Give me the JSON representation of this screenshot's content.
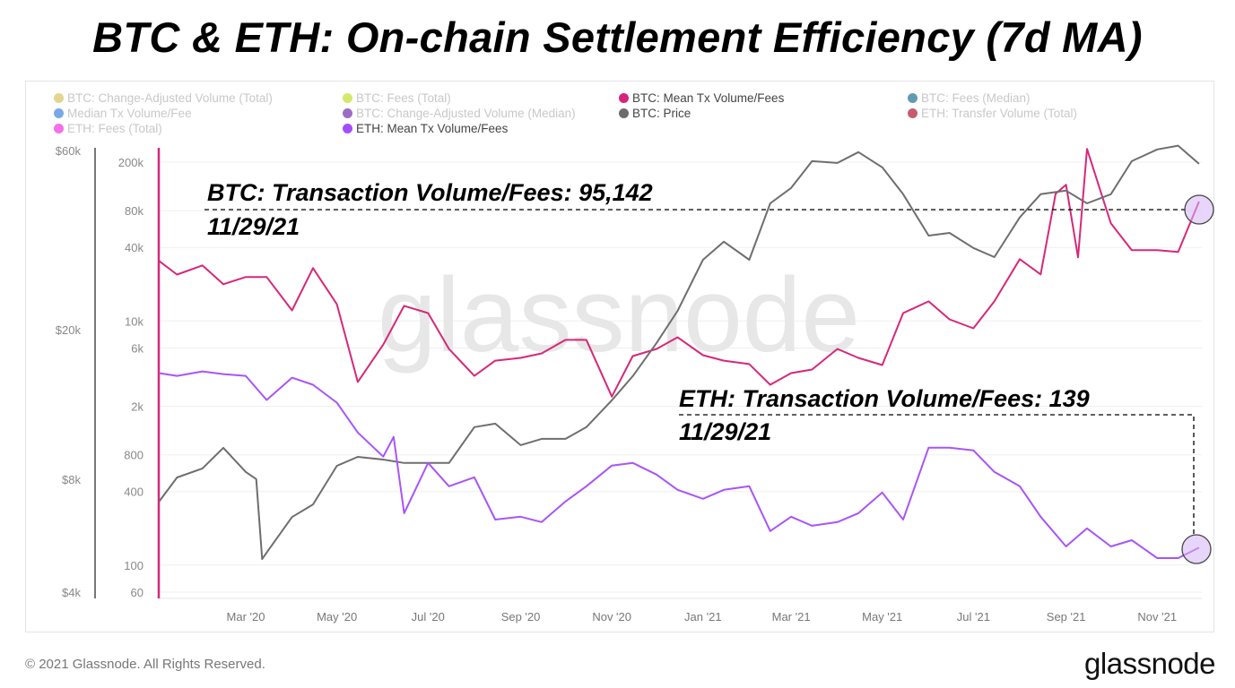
{
  "title": "BTC & ETH: On-chain Settlement Efficiency (7d MA)",
  "watermark": "glassnode",
  "footer": {
    "copyright": "© 2021 Glassnode. All Rights Reserved.",
    "logo": "glassnode"
  },
  "legend": [
    {
      "label": "BTC: Change-Adjusted Volume (Total)",
      "color": "#d9c86a",
      "active": false
    },
    {
      "label": "BTC: Fees (Total)",
      "color": "#c5e03c",
      "active": false
    },
    {
      "label": "BTC: Mean Tx Volume/Fees",
      "color": "#d6247a",
      "active": true
    },
    {
      "label": "BTC: Fees (Median)",
      "color": "#2c7a98",
      "active": false
    },
    {
      "label": "Median Tx Volume/Fee",
      "color": "#4a8be0",
      "active": false
    },
    {
      "label": "BTC: Change-Adjusted Volume (Median)",
      "color": "#7b3bb2",
      "active": false
    },
    {
      "label": "BTC: Price",
      "color": "#6b6b6b",
      "active": true
    },
    {
      "label": "ETH: Transfer Volume (Total)",
      "color": "#b3263f",
      "active": false
    },
    {
      "label": "ETH: Fees (Total)",
      "color": "#f23fe2",
      "active": false
    },
    {
      "label": "ETH: Mean Tx Volume/Fees",
      "color": "#a44dff",
      "active": true
    }
  ],
  "annotations": {
    "btc": {
      "label": "BTC: Transaction Volume/Fees: 95,142",
      "date": "11/29/21"
    },
    "eth": {
      "label": "ETH: Transaction Volume/Fees: 139",
      "date": "11/29/21"
    }
  },
  "chart_data": {
    "type": "line",
    "x_ticks": [
      "Mar '20",
      "May '20",
      "Jul '20",
      "Sep '20",
      "Nov '20",
      "Jan '21",
      "Mar '21",
      "May '21",
      "Jul '21",
      "Sep '21",
      "Nov '21"
    ],
    "x_tick_dates": [
      "2020-03-01",
      "2020-05-01",
      "2020-07-01",
      "2020-09-01",
      "2020-11-01",
      "2021-01-01",
      "2021-03-01",
      "2021-05-01",
      "2021-07-01",
      "2021-09-01",
      "2021-11-01"
    ],
    "xlim": [
      "2020-01-03",
      "2021-11-29"
    ],
    "y_price": {
      "scale": "log",
      "ticks": [
        "$60k",
        "$20k",
        "$8k",
        "$4k"
      ],
      "tick_values": [
        60000,
        20000,
        8000,
        4000
      ],
      "ylim": [
        4000,
        60000
      ]
    },
    "y_ratio": {
      "scale": "log",
      "ticks": [
        "200k",
        "80k",
        "40k",
        "10k",
        "6k",
        "2k",
        "800",
        "400",
        "100",
        "60"
      ],
      "tick_values": [
        200000,
        80000,
        40000,
        10000,
        6000,
        2000,
        800,
        400,
        100,
        60
      ],
      "ylim": [
        60,
        200000
      ]
    },
    "grid": true,
    "legend": "top",
    "series": [
      {
        "name": "BTC: Mean Tx Volume/Fees",
        "axis": "ratio",
        "color": "#d6287a",
        "points": [
          [
            "2020-01-03",
            31000
          ],
          [
            "2020-01-15",
            24000
          ],
          [
            "2020-02-01",
            28500
          ],
          [
            "2020-02-15",
            20000
          ],
          [
            "2020-03-01",
            22900
          ],
          [
            "2020-03-15",
            22900
          ],
          [
            "2020-04-01",
            12200
          ],
          [
            "2020-04-15",
            27100
          ],
          [
            "2020-05-01",
            13700
          ],
          [
            "2020-05-15",
            3160
          ],
          [
            "2020-06-01",
            6400
          ],
          [
            "2020-06-15",
            13300
          ],
          [
            "2020-07-01",
            11600
          ],
          [
            "2020-07-15",
            5900
          ],
          [
            "2020-08-01",
            3550
          ],
          [
            "2020-08-15",
            4730
          ],
          [
            "2020-09-01",
            4980
          ],
          [
            "2020-09-15",
            5420
          ],
          [
            "2020-10-01",
            7000
          ],
          [
            "2020-10-15",
            7000
          ],
          [
            "2020-11-01",
            2400
          ],
          [
            "2020-11-15",
            5150
          ],
          [
            "2020-12-01",
            5900
          ],
          [
            "2020-12-15",
            7350
          ],
          [
            "2021-01-01",
            5240
          ],
          [
            "2021-01-15",
            4730
          ],
          [
            "2021-02-01",
            4430
          ],
          [
            "2021-02-15",
            3000
          ],
          [
            "2021-03-01",
            3740
          ],
          [
            "2021-03-15",
            4000
          ],
          [
            "2021-04-01",
            5900
          ],
          [
            "2021-04-15",
            4980
          ],
          [
            "2021-05-01",
            4350
          ],
          [
            "2021-05-15",
            11600
          ],
          [
            "2021-06-01",
            14460
          ],
          [
            "2021-06-15",
            10310
          ],
          [
            "2021-07-01",
            8700
          ],
          [
            "2021-07-15",
            14460
          ],
          [
            "2021-08-01",
            32080
          ],
          [
            "2021-08-15",
            24060
          ],
          [
            "2021-08-25",
            110400
          ],
          [
            "2021-09-01",
            130700
          ],
          [
            "2021-09-09",
            33200
          ],
          [
            "2021-09-15",
            257000
          ],
          [
            "2021-10-01",
            63100
          ],
          [
            "2021-10-15",
            37960
          ],
          [
            "2021-11-01",
            37960
          ],
          [
            "2021-11-15",
            36700
          ],
          [
            "2021-11-29",
            95142
          ]
        ]
      },
      {
        "name": "BTC: Price",
        "axis": "price",
        "color": "#6e6e6e",
        "points": [
          [
            "2020-01-03",
            6970
          ],
          [
            "2020-01-15",
            8080
          ],
          [
            "2020-02-01",
            8540
          ],
          [
            "2020-02-15",
            9690
          ],
          [
            "2020-03-01",
            8360
          ],
          [
            "2020-03-08",
            8000
          ],
          [
            "2020-03-12",
            4900
          ],
          [
            "2020-03-15",
            5100
          ],
          [
            "2020-04-01",
            6340
          ],
          [
            "2020-04-15",
            6850
          ],
          [
            "2020-05-01",
            8680
          ],
          [
            "2020-05-15",
            9170
          ],
          [
            "2020-06-01",
            9020
          ],
          [
            "2020-06-15",
            8830
          ],
          [
            "2020-07-01",
            8830
          ],
          [
            "2020-07-15",
            8830
          ],
          [
            "2020-08-01",
            11000
          ],
          [
            "2020-08-15",
            11240
          ],
          [
            "2020-09-01",
            9850
          ],
          [
            "2020-09-15",
            10240
          ],
          [
            "2020-10-01",
            10240
          ],
          [
            "2020-10-15",
            11000
          ],
          [
            "2020-11-01",
            12970
          ],
          [
            "2020-11-15",
            15040
          ],
          [
            "2020-12-01",
            18440
          ],
          [
            "2020-12-15",
            22450
          ],
          [
            "2021-01-01",
            30700
          ],
          [
            "2021-01-15",
            34300
          ],
          [
            "2021-02-01",
            30700
          ],
          [
            "2021-02-15",
            43400
          ],
          [
            "2021-03-01",
            47700
          ],
          [
            "2021-03-15",
            56200
          ],
          [
            "2021-04-01",
            55600
          ],
          [
            "2021-04-15",
            59400
          ],
          [
            "2021-05-01",
            54100
          ],
          [
            "2021-05-15",
            45900
          ],
          [
            "2021-06-01",
            35600
          ],
          [
            "2021-06-15",
            36200
          ],
          [
            "2021-07-01",
            33000
          ],
          [
            "2021-07-15",
            31200
          ],
          [
            "2021-08-01",
            39800
          ],
          [
            "2021-08-15",
            45900
          ],
          [
            "2021-09-01",
            46900
          ],
          [
            "2021-09-15",
            43400
          ],
          [
            "2021-10-01",
            45900
          ],
          [
            "2021-10-15",
            56200
          ],
          [
            "2021-11-01",
            60400
          ],
          [
            "2021-11-15",
            61800
          ],
          [
            "2021-11-29",
            55300
          ]
        ]
      },
      {
        "name": "ETH: Mean Tx Volume/Fees",
        "axis": "ratio",
        "color": "#a855f7",
        "points": [
          [
            "2020-01-03",
            3740
          ],
          [
            "2020-01-15",
            3550
          ],
          [
            "2020-02-01",
            3860
          ],
          [
            "2020-02-15",
            3670
          ],
          [
            "2020-03-01",
            3550
          ],
          [
            "2020-03-15",
            2250
          ],
          [
            "2020-04-01",
            3430
          ],
          [
            "2020-04-15",
            3000
          ],
          [
            "2020-05-01",
            2140
          ],
          [
            "2020-05-15",
            1220
          ],
          [
            "2020-06-01",
            774
          ],
          [
            "2020-06-08",
            1122
          ],
          [
            "2020-06-15",
            266
          ],
          [
            "2020-07-01",
            687
          ],
          [
            "2020-07-15",
            442
          ],
          [
            "2020-08-01",
            524
          ],
          [
            "2020-08-15",
            236
          ],
          [
            "2020-09-01",
            249
          ],
          [
            "2020-09-15",
            225
          ],
          [
            "2020-10-01",
            332
          ],
          [
            "2020-10-15",
            442
          ],
          [
            "2020-11-01",
            653
          ],
          [
            "2020-11-15",
            687
          ],
          [
            "2020-12-01",
            551
          ],
          [
            "2020-12-15",
            413
          ],
          [
            "2021-01-01",
            349
          ],
          [
            "2021-01-15",
            413
          ],
          [
            "2021-02-01",
            442
          ],
          [
            "2021-02-15",
            190
          ],
          [
            "2021-03-01",
            249
          ],
          [
            "2021-03-15",
            210
          ],
          [
            "2021-04-01",
            225
          ],
          [
            "2021-04-15",
            266
          ],
          [
            "2021-05-01",
            393
          ],
          [
            "2021-05-15",
            236
          ],
          [
            "2021-06-01",
            916
          ],
          [
            "2021-06-15",
            916
          ],
          [
            "2021-07-01",
            871
          ],
          [
            "2021-07-15",
            580
          ],
          [
            "2021-08-01",
            442
          ],
          [
            "2021-08-15",
            249
          ],
          [
            "2021-09-01",
            142
          ],
          [
            "2021-09-15",
            200
          ],
          [
            "2021-10-01",
            142
          ],
          [
            "2021-10-15",
            160
          ],
          [
            "2021-11-01",
            114
          ],
          [
            "2021-11-15",
            114
          ],
          [
            "2021-11-29",
            139
          ]
        ]
      }
    ]
  }
}
